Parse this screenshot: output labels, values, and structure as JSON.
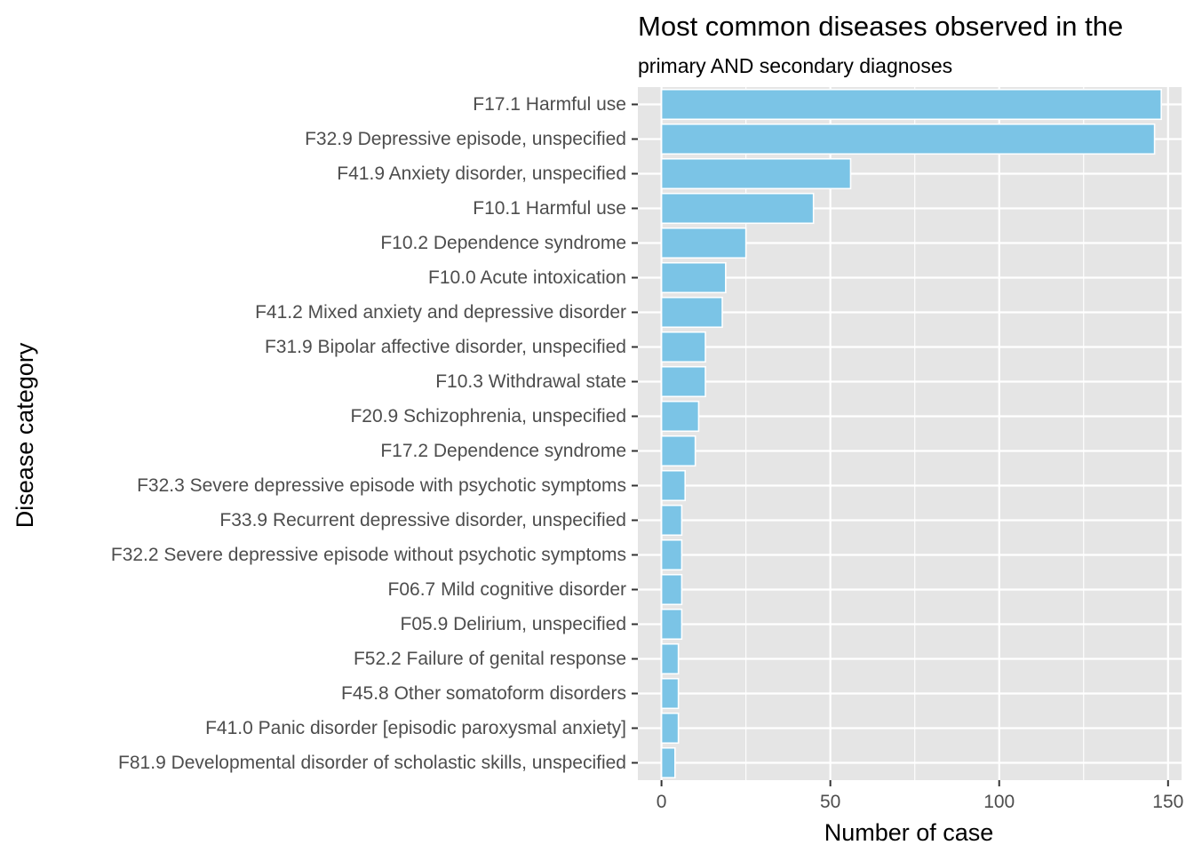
{
  "chart_data": {
    "type": "bar",
    "orientation": "horizontal",
    "title": "Most common diseases observed in the",
    "subtitle": "primary AND secondary diagnoses",
    "xlabel": "Number of case",
    "ylabel": "Disease category",
    "xlim": [
      -7,
      154
    ],
    "xticks": [
      0,
      50,
      100,
      150
    ],
    "grid": true,
    "legend": "none",
    "bar_color": "#7BC4E6",
    "panel_color": "#E5E5E5",
    "categories": [
      "F17.1 Harmful use",
      "F32.9 Depressive episode, unspecified",
      "F41.9 Anxiety disorder, unspecified",
      "F10.1 Harmful use",
      "F10.2 Dependence syndrome",
      "F10.0 Acute intoxication",
      "F41.2 Mixed anxiety and depressive disorder",
      "F31.9 Bipolar affective disorder, unspecified",
      "F10.3 Withdrawal state",
      "F20.9 Schizophrenia, unspecified",
      "F17.2 Dependence syndrome",
      "F32.3 Severe depressive episode with psychotic symptoms",
      "F33.9 Recurrent depressive disorder, unspecified",
      "F32.2 Severe depressive episode without psychotic symptoms",
      "F06.7 Mild cognitive disorder",
      "F05.9 Delirium, unspecified",
      "F52.2 Failure of genital response",
      "F45.8 Other somatoform disorders",
      "F41.0 Panic disorder [episodic paroxysmal anxiety]",
      "F81.9 Developmental disorder of scholastic skills, unspecified"
    ],
    "values": [
      148,
      146,
      56,
      45,
      25,
      19,
      18,
      13,
      13,
      11,
      10,
      7,
      6,
      6,
      6,
      6,
      5,
      5,
      5,
      4
    ]
  }
}
